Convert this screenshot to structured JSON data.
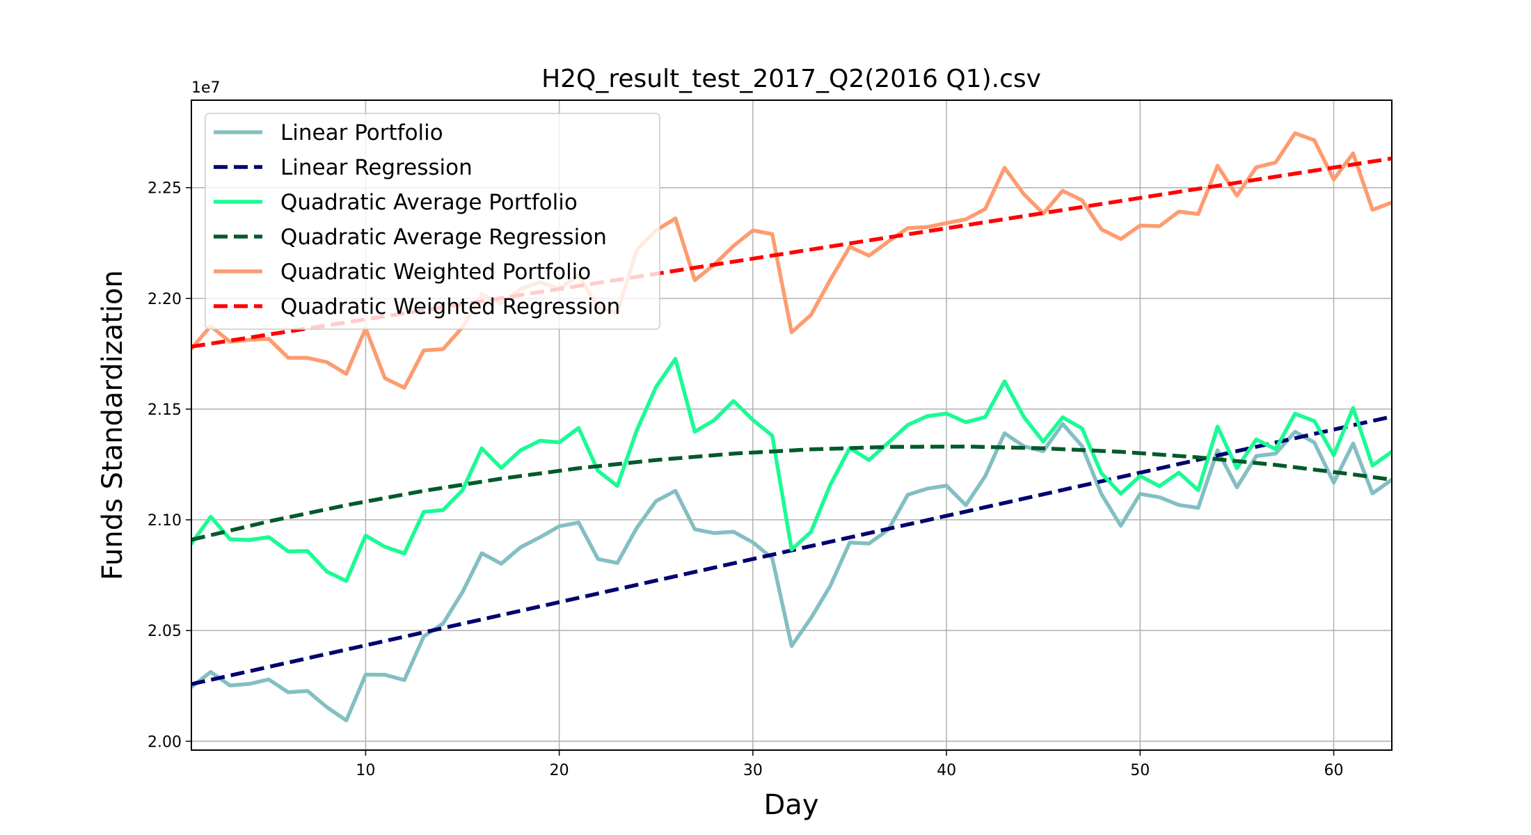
{
  "chart_data": {
    "type": "line",
    "title": "H2Q_result_test_2017_Q2(2016 Q1).csv",
    "xlabel": "Day",
    "ylabel": "Funds Standardization",
    "y_offset_label": "1e7",
    "xlim": [
      1,
      63
    ],
    "ylim": [
      1.996,
      2.2895
    ],
    "grid": true,
    "legend_position": "top-left",
    "x_ticks": [
      10,
      20,
      30,
      40,
      50,
      60
    ],
    "y_ticks": [
      {
        "value": 2.0,
        "label": "2.00"
      },
      {
        "value": 2.05,
        "label": "2.05"
      },
      {
        "value": 2.1,
        "label": "2.10"
      },
      {
        "value": 2.15,
        "label": "2.15"
      },
      {
        "value": 2.2,
        "label": "2.20"
      },
      {
        "value": 2.25,
        "label": "2.25"
      }
    ],
    "x": [
      1,
      2,
      3,
      4,
      5,
      6,
      7,
      8,
      9,
      10,
      11,
      12,
      13,
      14,
      15,
      16,
      17,
      18,
      19,
      20,
      21,
      22,
      23,
      24,
      25,
      26,
      27,
      28,
      29,
      30,
      31,
      32,
      33,
      34,
      35,
      36,
      37,
      38,
      39,
      40,
      41,
      42,
      43,
      44,
      45,
      46,
      47,
      48,
      49,
      50,
      51,
      52,
      53,
      54,
      55,
      56,
      57,
      58,
      59,
      60,
      61,
      62,
      63
    ],
    "series": [
      {
        "name": "Linear Portfolio",
        "style": "solid",
        "color": "#83bfc2",
        "values": [
          2.0245,
          2.0313,
          2.0252,
          2.0259,
          2.0279,
          2.0221,
          2.0227,
          2.0154,
          2.0094,
          2.0301,
          2.03,
          2.0276,
          2.0473,
          2.0532,
          2.0673,
          2.0849,
          2.0802,
          2.0876,
          2.0921,
          2.0971,
          2.0988,
          2.0823,
          2.0805,
          2.0963,
          2.1085,
          2.1131,
          2.0957,
          2.094,
          2.0946,
          2.0898,
          2.0827,
          2.043,
          2.0556,
          2.0702,
          2.0897,
          2.0893,
          2.0956,
          2.1113,
          2.1141,
          2.1154,
          2.1066,
          2.1197,
          2.1391,
          2.1332,
          2.131,
          2.1433,
          2.1333,
          2.1116,
          2.0973,
          2.1117,
          2.1102,
          2.1067,
          2.1054,
          2.1314,
          2.1147,
          2.1288,
          2.1299,
          2.1398,
          2.1349,
          2.1168,
          2.1345,
          2.1119,
          2.1181
        ]
      },
      {
        "name": "Linear Regression",
        "style": "dashed",
        "color": "#000070",
        "x": [
          1,
          63
        ],
        "values": [
          2.0258,
          2.1466
        ]
      },
      {
        "name": "Quadratic Average Portfolio",
        "style": "solid",
        "color": "#1bfb95",
        "values": [
          2.0893,
          2.1014,
          2.0912,
          2.0909,
          2.0922,
          2.0857,
          2.0859,
          2.0766,
          2.0724,
          2.0929,
          2.0878,
          2.0848,
          2.1036,
          2.1044,
          2.1133,
          2.1323,
          2.1234,
          2.1314,
          2.1357,
          2.135,
          2.1415,
          2.1221,
          2.1153,
          2.1403,
          2.16,
          2.1727,
          2.1398,
          2.145,
          2.1537,
          2.1451,
          2.138,
          2.0866,
          2.0945,
          2.1158,
          2.1324,
          2.127,
          2.1349,
          2.1428,
          2.1468,
          2.148,
          2.1441,
          2.1464,
          2.1625,
          2.1464,
          2.1353,
          2.1463,
          2.1413,
          2.121,
          2.1118,
          2.1198,
          2.1152,
          2.1213,
          2.1134,
          2.1421,
          2.1233,
          2.1363,
          2.1319,
          2.1479,
          2.1446,
          2.1292,
          2.1505,
          2.1245,
          2.1307
        ]
      },
      {
        "name": "Quadratic Average Regression",
        "style": "dashed",
        "color": "#005a2a",
        "x": [
          1,
          5,
          9,
          13,
          17,
          21,
          25,
          29,
          33,
          37,
          41,
          45,
          49,
          53,
          57,
          61,
          63
        ],
        "values": [
          2.091,
          2.0993,
          2.1066,
          2.1131,
          2.1186,
          2.1233,
          2.127,
          2.1299,
          2.1318,
          2.1329,
          2.1331,
          2.1323,
          2.1307,
          2.1282,
          2.1248,
          2.1205,
          2.1181
        ]
      },
      {
        "name": "Quadratic Weighted Portfolio",
        "style": "solid",
        "color": "#fd9c70",
        "values": [
          2.1773,
          2.1875,
          2.1804,
          2.1813,
          2.1817,
          2.1732,
          2.1731,
          2.1712,
          2.1659,
          2.1865,
          2.1639,
          2.1597,
          2.1765,
          2.1771,
          2.187,
          2.2019,
          2.1977,
          2.2042,
          2.2073,
          2.2043,
          2.2106,
          2.1959,
          2.1933,
          2.2218,
          2.2307,
          2.2361,
          2.2082,
          2.2152,
          2.2237,
          2.2307,
          2.229,
          2.1847,
          2.1925,
          2.2084,
          2.2233,
          2.2193,
          2.2257,
          2.2317,
          2.2322,
          2.234,
          2.2357,
          2.2404,
          2.259,
          2.247,
          2.2383,
          2.2486,
          2.2443,
          2.2312,
          2.2268,
          2.2329,
          2.2326,
          2.2392,
          2.2381,
          2.2599,
          2.2464,
          2.2592,
          2.2614,
          2.2746,
          2.2714,
          2.2537,
          2.2655,
          2.24,
          2.2433
        ]
      },
      {
        "name": "Quadratic Weighted Regression",
        "style": "dashed",
        "color": "#ff0000",
        "x": [
          1,
          63
        ],
        "values": [
          2.1782,
          2.2632
        ]
      }
    ]
  }
}
